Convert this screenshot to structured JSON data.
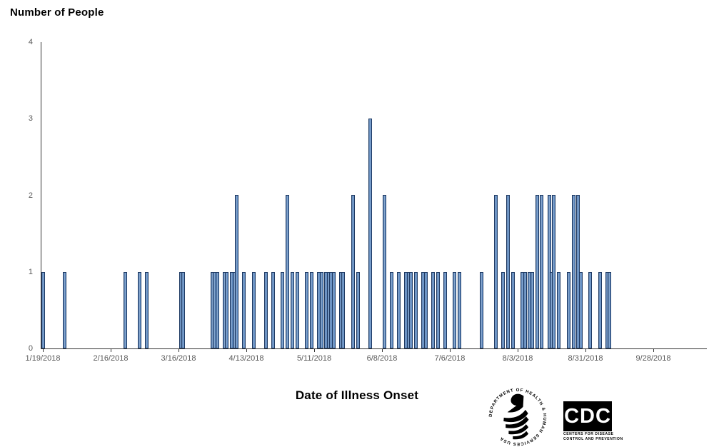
{
  "chart_data": {
    "type": "bar",
    "title": "Number of People",
    "xlabel": "Date of Illness Onset",
    "ylabel": "",
    "ylim": [
      0,
      4
    ],
    "yticks": [
      0,
      1,
      2,
      3,
      4
    ],
    "xtick_labels": [
      "1/19/2018",
      "2/16/2018",
      "3/16/2018",
      "4/13/2018",
      "5/11/2018",
      "6/8/2018",
      "7/6/2018",
      "8/3/2018",
      "8/31/2018",
      "9/28/2018"
    ],
    "x_start_date": "2018-01-19",
    "x_end_date": "2018-09-28",
    "x_tick_interval_days": 28,
    "grid": "off",
    "legend": "none",
    "bar_fill_color": "#4F81BD",
    "bar_border_color": "#1F3A63",
    "axis_color": "#333333",
    "tick_label_color": "#595959",
    "total_people": 87,
    "points": [
      {
        "date": "2018-01-19",
        "count": 1
      },
      {
        "date": "2018-01-28",
        "count": 1
      },
      {
        "date": "2018-02-22",
        "count": 1
      },
      {
        "date": "2018-02-28",
        "count": 1
      },
      {
        "date": "2018-03-03",
        "count": 1
      },
      {
        "date": "2018-03-17",
        "count": 1
      },
      {
        "date": "2018-03-18",
        "count": 1
      },
      {
        "date": "2018-03-30",
        "count": 1
      },
      {
        "date": "2018-03-31",
        "count": 1
      },
      {
        "date": "2018-04-01",
        "count": 1
      },
      {
        "date": "2018-04-04",
        "count": 1
      },
      {
        "date": "2018-04-05",
        "count": 1
      },
      {
        "date": "2018-04-07",
        "count": 1
      },
      {
        "date": "2018-04-08",
        "count": 1
      },
      {
        "date": "2018-04-09",
        "count": 2
      },
      {
        "date": "2018-04-12",
        "count": 1
      },
      {
        "date": "2018-04-16",
        "count": 1
      },
      {
        "date": "2018-04-21",
        "count": 1
      },
      {
        "date": "2018-04-24",
        "count": 1
      },
      {
        "date": "2018-04-28",
        "count": 1
      },
      {
        "date": "2018-04-30",
        "count": 2
      },
      {
        "date": "2018-05-02",
        "count": 1
      },
      {
        "date": "2018-05-04",
        "count": 1
      },
      {
        "date": "2018-05-08",
        "count": 1
      },
      {
        "date": "2018-05-10",
        "count": 1
      },
      {
        "date": "2018-05-13",
        "count": 1
      },
      {
        "date": "2018-05-14",
        "count": 1
      },
      {
        "date": "2018-05-16",
        "count": 1
      },
      {
        "date": "2018-05-17",
        "count": 1
      },
      {
        "date": "2018-05-18",
        "count": 1
      },
      {
        "date": "2018-05-19",
        "count": 1
      },
      {
        "date": "2018-05-22",
        "count": 1
      },
      {
        "date": "2018-05-23",
        "count": 1
      },
      {
        "date": "2018-05-27",
        "count": 2
      },
      {
        "date": "2018-05-29",
        "count": 1
      },
      {
        "date": "2018-06-03",
        "count": 3
      },
      {
        "date": "2018-06-09",
        "count": 2
      },
      {
        "date": "2018-06-12",
        "count": 1
      },
      {
        "date": "2018-06-15",
        "count": 1
      },
      {
        "date": "2018-06-18",
        "count": 1
      },
      {
        "date": "2018-06-19",
        "count": 1
      },
      {
        "date": "2018-06-20",
        "count": 1
      },
      {
        "date": "2018-06-22",
        "count": 1
      },
      {
        "date": "2018-06-25",
        "count": 1
      },
      {
        "date": "2018-06-26",
        "count": 1
      },
      {
        "date": "2018-06-29",
        "count": 1
      },
      {
        "date": "2018-07-01",
        "count": 1
      },
      {
        "date": "2018-07-04",
        "count": 1
      },
      {
        "date": "2018-07-08",
        "count": 1
      },
      {
        "date": "2018-07-10",
        "count": 1
      },
      {
        "date": "2018-07-19",
        "count": 1
      },
      {
        "date": "2018-07-25",
        "count": 2
      },
      {
        "date": "2018-07-28",
        "count": 1
      },
      {
        "date": "2018-07-30",
        "count": 2
      },
      {
        "date": "2018-08-01",
        "count": 1
      },
      {
        "date": "2018-08-05",
        "count": 1
      },
      {
        "date": "2018-08-06",
        "count": 1
      },
      {
        "date": "2018-08-08",
        "count": 1
      },
      {
        "date": "2018-08-09",
        "count": 1
      },
      {
        "date": "2018-08-11",
        "count": 2
      },
      {
        "date": "2018-08-13",
        "count": 2
      },
      {
        "date": "2018-08-16",
        "count": 2
      },
      {
        "date": "2018-08-17",
        "count": 1
      },
      {
        "date": "2018-08-18",
        "count": 2
      },
      {
        "date": "2018-08-20",
        "count": 1
      },
      {
        "date": "2018-08-24",
        "count": 1
      },
      {
        "date": "2018-08-26",
        "count": 2
      },
      {
        "date": "2018-08-28",
        "count": 2
      },
      {
        "date": "2018-08-29",
        "count": 1
      },
      {
        "date": "2018-09-02",
        "count": 1
      },
      {
        "date": "2018-09-06",
        "count": 1
      },
      {
        "date": "2018-09-09",
        "count": 1
      },
      {
        "date": "2018-09-10",
        "count": 1
      }
    ]
  },
  "footer": {
    "hhs_logo_text": "DEPARTMENT OF HEALTH & HUMAN SERVICES USA",
    "cdc_logo_text": "CDC",
    "cdc_sub1": "CENTERS FOR DISEASE",
    "cdc_sub2": "CONTROL AND PREVENTION"
  }
}
